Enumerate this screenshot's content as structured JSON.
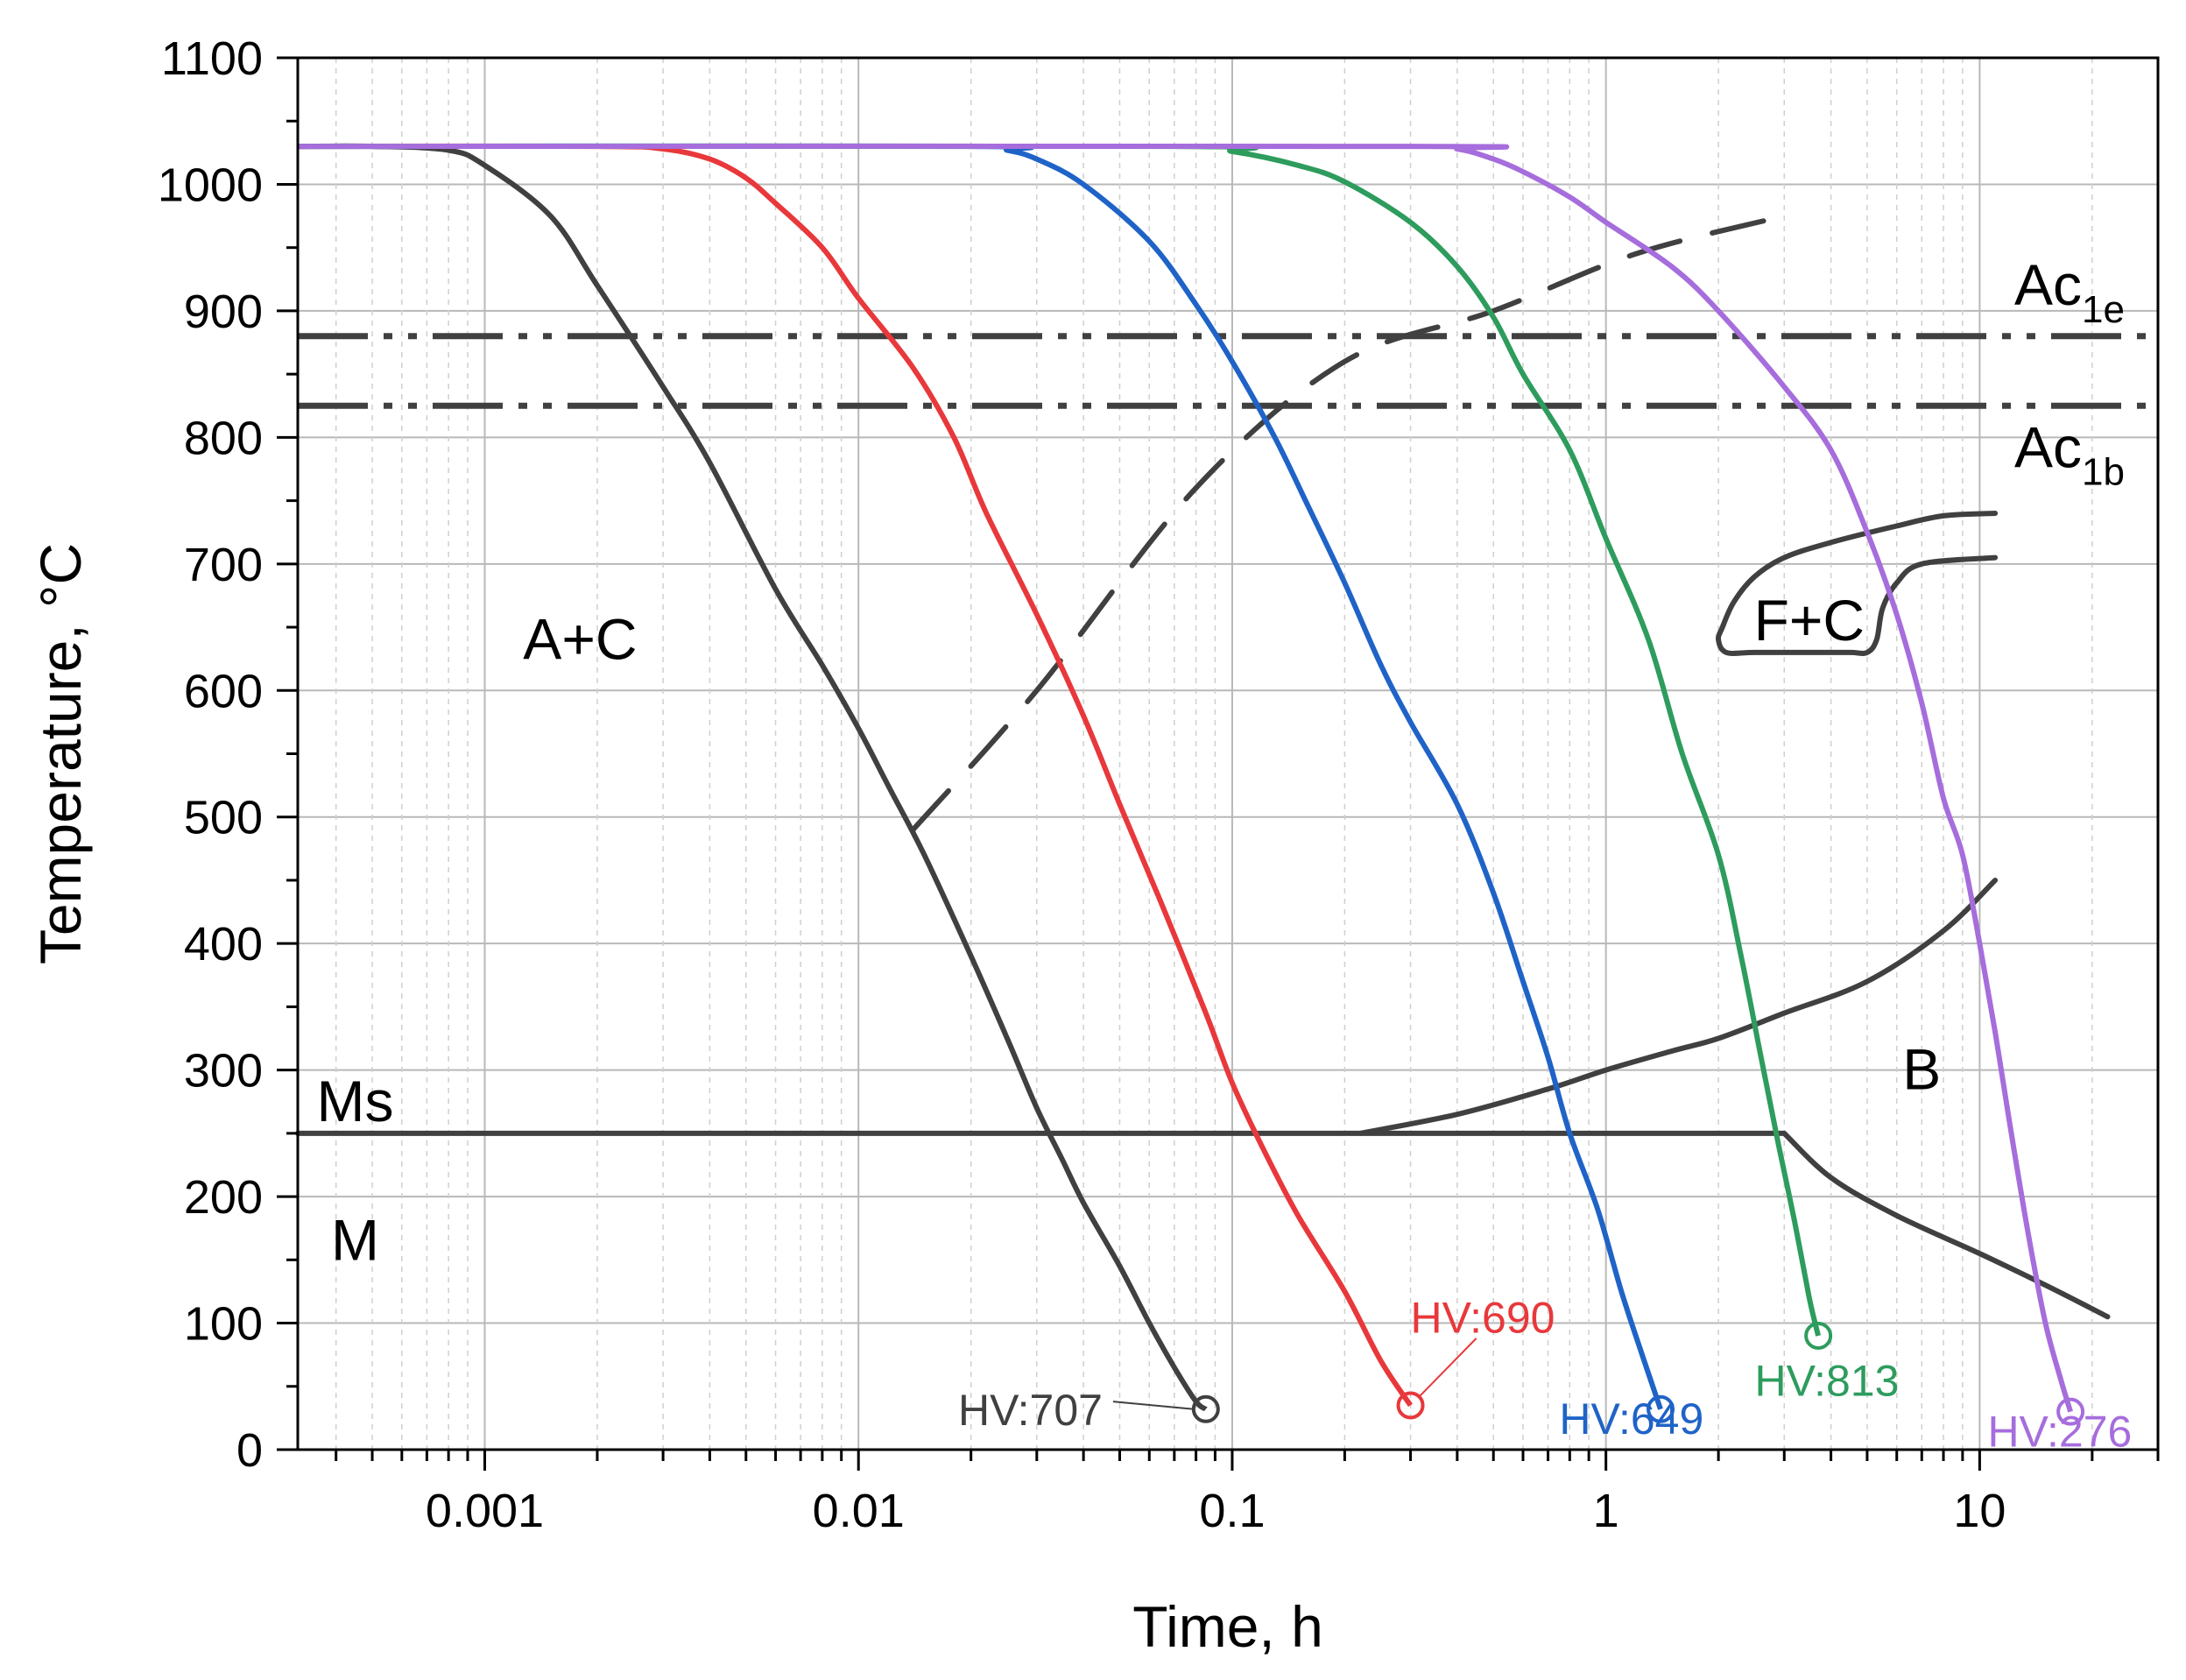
{
  "chart_data": {
    "type": "line",
    "title": "",
    "xlabel": "Time, h",
    "ylabel": "Temperature, °C",
    "xscale": "log",
    "xlim": [
      0.000316,
      30
    ],
    "ylim": [
      0,
      1100
    ],
    "grid": true,
    "x_ticks": [
      {
        "value": 0.001,
        "label": "0.001"
      },
      {
        "value": 0.01,
        "label": "0.01"
      },
      {
        "value": 0.1,
        "label": "0.1"
      },
      {
        "value": 1,
        "label": "1"
      },
      {
        "value": 10,
        "label": "10"
      }
    ],
    "y_ticks": [
      0,
      100,
      200,
      300,
      400,
      500,
      600,
      700,
      800,
      900,
      1000,
      1100
    ],
    "y_tick_labels": [
      "0",
      "100",
      "200",
      "300",
      "400",
      "500",
      "600",
      "700",
      "800",
      "900",
      "1000",
      "1100"
    ],
    "cooling_curves": [
      {
        "name": "curve-black",
        "color": "#404040",
        "hardness": "HV:707",
        "points": [
          [
            0.000316,
            1030
          ],
          [
            0.0005,
            1030
          ],
          [
            0.0008,
            1027
          ],
          [
            0.001,
            1015
          ],
          [
            0.0015,
            975
          ],
          [
            0.002,
            920
          ],
          [
            0.003,
            840
          ],
          [
            0.004,
            780
          ],
          [
            0.006,
            680
          ],
          [
            0.008,
            620
          ],
          [
            0.01,
            570
          ],
          [
            0.012,
            525
          ],
          [
            0.015,
            470
          ],
          [
            0.02,
            390
          ],
          [
            0.025,
            325
          ],
          [
            0.03,
            270
          ],
          [
            0.035,
            230
          ],
          [
            0.04,
            195
          ],
          [
            0.05,
            145
          ],
          [
            0.06,
            100
          ],
          [
            0.07,
            65
          ],
          [
            0.08,
            38
          ],
          [
            0.085,
            32
          ]
        ]
      },
      {
        "name": "curve-red",
        "color": "#e8383b",
        "hardness": "HV:690",
        "points": [
          [
            0.000316,
            1030
          ],
          [
            0.002,
            1030
          ],
          [
            0.003,
            1028
          ],
          [
            0.004,
            1020
          ],
          [
            0.005,
            1005
          ],
          [
            0.006,
            985
          ],
          [
            0.008,
            950
          ],
          [
            0.01,
            910
          ],
          [
            0.014,
            855
          ],
          [
            0.018,
            800
          ],
          [
            0.022,
            740
          ],
          [
            0.03,
            660
          ],
          [
            0.04,
            580
          ],
          [
            0.05,
            510
          ],
          [
            0.065,
            430
          ],
          [
            0.085,
            345
          ],
          [
            0.1,
            290
          ],
          [
            0.12,
            240
          ],
          [
            0.15,
            185
          ],
          [
            0.2,
            125
          ],
          [
            0.25,
            70
          ],
          [
            0.3,
            35
          ]
        ]
      },
      {
        "name": "curve-blue",
        "color": "#1f63c7",
        "hardness": "HV:649",
        "points": [
          [
            0.000316,
            1030
          ],
          [
            0.02,
            1030
          ],
          [
            0.025,
            1027
          ],
          [
            0.03,
            1020
          ],
          [
            0.04,
            1000
          ],
          [
            0.06,
            955
          ],
          [
            0.08,
            905
          ],
          [
            0.1,
            860
          ],
          [
            0.13,
            800
          ],
          [
            0.16,
            745
          ],
          [
            0.2,
            685
          ],
          [
            0.25,
            620
          ],
          [
            0.3,
            575
          ],
          [
            0.4,
            510
          ],
          [
            0.5,
            440
          ],
          [
            0.6,
            370
          ],
          [
            0.7,
            310
          ],
          [
            0.8,
            250
          ],
          [
            0.95,
            190
          ],
          [
            1.1,
            125
          ],
          [
            1.25,
            75
          ],
          [
            1.4,
            32
          ]
        ]
      },
      {
        "name": "curve-green",
        "color": "#2d9c5d",
        "hardness": "HV:813",
        "points": [
          [
            0.000316,
            1030
          ],
          [
            0.07,
            1030
          ],
          [
            0.1,
            1026
          ],
          [
            0.15,
            1015
          ],
          [
            0.2,
            1002
          ],
          [
            0.3,
            970
          ],
          [
            0.4,
            935
          ],
          [
            0.5,
            895
          ],
          [
            0.6,
            850
          ],
          [
            0.8,
            790
          ],
          [
            1.0,
            720
          ],
          [
            1.3,
            640
          ],
          [
            1.6,
            550
          ],
          [
            2.0,
            470
          ],
          [
            2.3,
            390
          ],
          [
            2.6,
            310
          ],
          [
            2.9,
            240
          ],
          [
            3.2,
            180
          ],
          [
            3.5,
            120
          ],
          [
            3.7,
            90
          ]
        ]
      },
      {
        "name": "curve-purple",
        "color": "#a66ddc",
        "hardness": "HV:276",
        "points": [
          [
            0.000316,
            1030
          ],
          [
            0.3,
            1030
          ],
          [
            0.4,
            1028
          ],
          [
            0.5,
            1020
          ],
          [
            0.6,
            1010
          ],
          [
            0.8,
            990
          ],
          [
            1.0,
            970
          ],
          [
            1.5,
            935
          ],
          [
            2.0,
            900
          ],
          [
            3.0,
            840
          ],
          [
            4.0,
            790
          ],
          [
            5.0,
            725
          ],
          [
            6.0,
            660
          ],
          [
            7.0,
            590
          ],
          [
            8.0,
            515
          ],
          [
            9.0,
            470
          ],
          [
            10.0,
            400
          ],
          [
            11.0,
            330
          ],
          [
            12.0,
            260
          ],
          [
            13.5,
            170
          ],
          [
            15.0,
            100
          ],
          [
            16.5,
            55
          ],
          [
            17.5,
            30
          ]
        ]
      }
    ],
    "phase_boundaries": [
      {
        "name": "bainite-start",
        "points": [
          [
            0.22,
            250
          ],
          [
            0.4,
            265
          ],
          [
            0.7,
            285
          ],
          [
            1.0,
            300
          ],
          [
            1.5,
            315
          ],
          [
            2.0,
            325
          ],
          [
            3.0,
            345
          ],
          [
            5.0,
            370
          ],
          [
            8.0,
            410
          ],
          [
            11.0,
            450
          ]
        ]
      },
      {
        "name": "bainite-end",
        "points": [
          [
            3.0,
            250
          ],
          [
            4.0,
            215
          ],
          [
            6.0,
            185
          ],
          [
            10.0,
            155
          ],
          [
            15.0,
            130
          ],
          [
            22.0,
            105
          ]
        ]
      },
      {
        "name": "ms-line",
        "points": [
          [
            0.000316,
            250
          ],
          [
            3.0,
            250
          ]
        ]
      },
      {
        "name": "pearlite-start",
        "points": [
          [
            11.0,
            740
          ],
          [
            8.0,
            738
          ],
          [
            6.0,
            730
          ],
          [
            4.0,
            717
          ],
          [
            3.0,
            705
          ],
          [
            2.5,
            690
          ],
          [
            2.2,
            670
          ],
          [
            2.05,
            650
          ],
          [
            2.0,
            640
          ],
          [
            2.1,
            630
          ],
          [
            2.5,
            630
          ],
          [
            3.5,
            630
          ],
          [
            4.5,
            630
          ],
          [
            5.0,
            630
          ],
          [
            5.3,
            640
          ],
          [
            5.5,
            665
          ],
          [
            6.0,
            685
          ],
          [
            7.0,
            700
          ],
          [
            11.0,
            705
          ]
        ]
      },
      {
        "name": "ferrite-carbide-start",
        "style": "dashed",
        "points": [
          [
            0.014,
            490
          ],
          [
            0.03,
            600
          ],
          [
            0.08,
            760
          ],
          [
            0.2,
            860
          ],
          [
            0.5,
            900
          ],
          [
            1.2,
            945
          ],
          [
            3.0,
            975
          ]
        ]
      }
    ],
    "critical_temperatures": [
      {
        "name": "Ac1e",
        "value": 880,
        "label": "Ac",
        "sub": "1e"
      },
      {
        "name": "Ac1b",
        "value": 825,
        "label": "Ac",
        "sub": "1b"
      }
    ],
    "region_labels": [
      {
        "text": "A+C",
        "x": 0.0018,
        "y": 640
      },
      {
        "text": "F+C",
        "x": 3.5,
        "y": 655
      },
      {
        "text": "Ms",
        "x": 0.00045,
        "y": 275
      },
      {
        "text": "M",
        "x": 0.00045,
        "y": 165
      },
      {
        "text": "B",
        "x": 7.0,
        "y": 300
      }
    ],
    "hardness_labels": [
      {
        "text": "HV:707",
        "color": "#404040",
        "x": 0.045,
        "y": 32
      },
      {
        "text": "HV:690",
        "color": "#e8383b",
        "x": 0.3,
        "y": 105
      },
      {
        "text": "HV:649",
        "color": "#1f63c7",
        "x": 0.75,
        "y": 25
      },
      {
        "text": "HV:813",
        "color": "#2d9c5d",
        "x": 2.5,
        "y": 55
      },
      {
        "text": "HV:276",
        "color": "#a66ddc",
        "x": 10.5,
        "y": 15
      }
    ]
  },
  "colors": {
    "axis": "#000000",
    "grid": "#b8b8b8",
    "boundary": "#404040"
  }
}
